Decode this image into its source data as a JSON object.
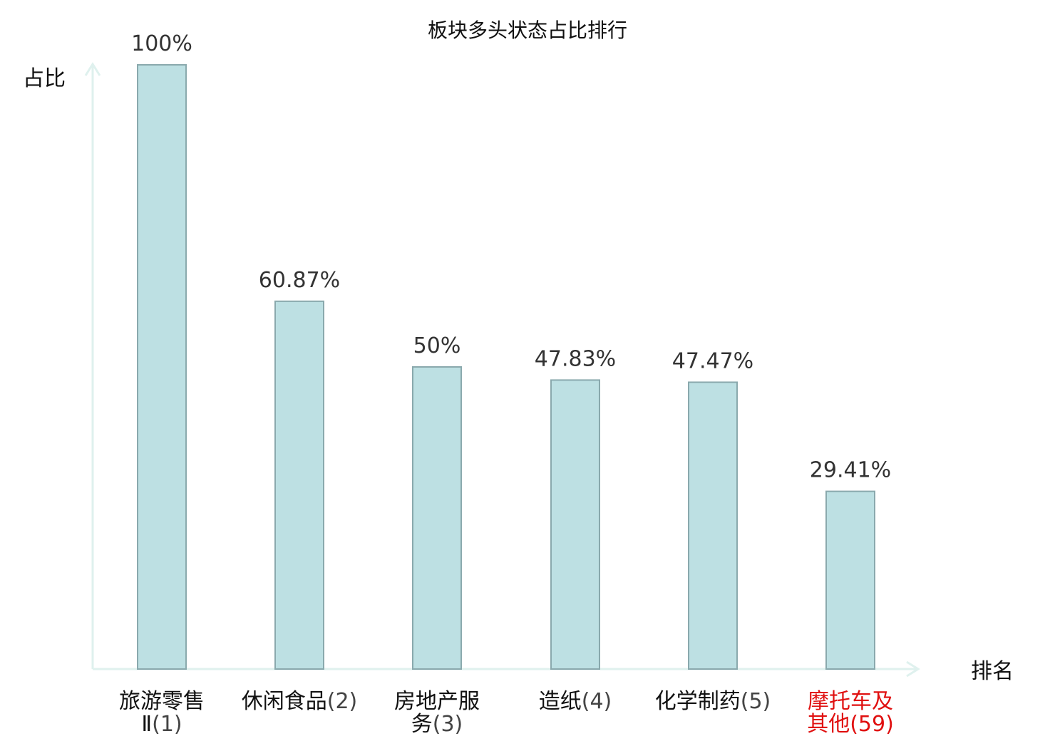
{
  "chart_data": {
    "type": "bar",
    "title": "板块多头状态占比排行",
    "ylabel": "占比",
    "xlabel": "排名",
    "ylim": [
      0,
      100
    ],
    "categories": [
      {
        "name_lines": [
          "旅游零售",
          "Ⅱ"
        ],
        "rank": "(1)",
        "highlight": false
      },
      {
        "name_lines": [
          "休闲食品"
        ],
        "rank": "(2)",
        "highlight": false
      },
      {
        "name_lines": [
          "房地产服",
          "务"
        ],
        "rank": "(3)",
        "highlight": false
      },
      {
        "name_lines": [
          "造纸"
        ],
        "rank": "(4)",
        "highlight": false
      },
      {
        "name_lines": [
          "化学制药"
        ],
        "rank": "(5)",
        "highlight": false
      },
      {
        "name_lines": [
          "摩托车及",
          "其他"
        ],
        "rank": "(59)",
        "highlight": true
      }
    ],
    "values": [
      100,
      60.87,
      50,
      47.83,
      47.47,
      29.41
    ],
    "value_labels": [
      "100%",
      "60.87%",
      "50%",
      "47.83%",
      "47.47%",
      "29.41%"
    ],
    "grid": false,
    "colors": {
      "bar_fill": "#bde0e3",
      "bar_stroke": "#8aa9ad",
      "axis": "#dff1ee",
      "highlight_text": "#e01010",
      "normal_text": "#111111",
      "rank_text": "#444444"
    }
  }
}
